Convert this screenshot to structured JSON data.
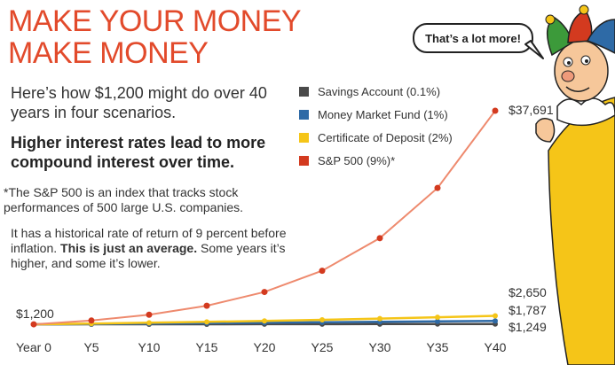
{
  "heading": {
    "line1": "MAKE YOUR MONEY",
    "line2": "MAKE MONEY"
  },
  "intro": "Here’s how $1,200 might do over 40 years in four scenarios.",
  "highlight": "Higher interest rates lead to more compound interest over time.",
  "footnote": {
    "marker": "*",
    "text": "The S&P 500 is an index that tracks stock performances of 500 large U.S. companies."
  },
  "average_note": {
    "lead": "It has a historical rate of return of 9 percent before inflation. ",
    "bold": "This is just an average.",
    "tail": " Some years it’s higher, and some it’s lower."
  },
  "speech_bubble": "That’s a lot more!",
  "colors": {
    "accent": "#e24a2b",
    "savings": "#4a4a4a",
    "money_market": "#2e6aa6",
    "cd": "#f5c518",
    "sp500": "#d33a1f",
    "sp500_line": "#ee8a6e"
  },
  "chart_data": {
    "type": "line",
    "x": [
      "Year 0",
      "Y5",
      "Y10",
      "Y15",
      "Y20",
      "Y25",
      "Y30",
      "Y35",
      "Y40"
    ],
    "ylim": [
      0,
      40000
    ],
    "grid": false,
    "legend_position": "top-center",
    "series": [
      {
        "name": "Savings Account (0.1%)",
        "color": "#4a4a4a",
        "values": [
          1200,
          1206,
          1212,
          1218,
          1224,
          1231,
          1237,
          1243,
          1249
        ]
      },
      {
        "name": "Money Market Fund (1%)",
        "color": "#2e6aa6",
        "values": [
          1200,
          1261,
          1326,
          1393,
          1464,
          1539,
          1617,
          1700,
          1787
        ]
      },
      {
        "name": "Certificate of Deposit (2%)",
        "color": "#f5c518",
        "values": [
          1200,
          1325,
          1463,
          1615,
          1783,
          1969,
          2174,
          2400,
          2650
        ]
      },
      {
        "name": "S&P 500 (9%)*",
        "color": "#d33a1f",
        "values": [
          1200,
          1846,
          2841,
          4371,
          6725,
          10347,
          15920,
          24495,
          37691
        ]
      }
    ],
    "annotations": {
      "start": "$1,200",
      "savings_end": "$1,249",
      "money_market_end": "$1,787",
      "cd_end": "$2,650",
      "sp500_end": "$37,691"
    }
  }
}
